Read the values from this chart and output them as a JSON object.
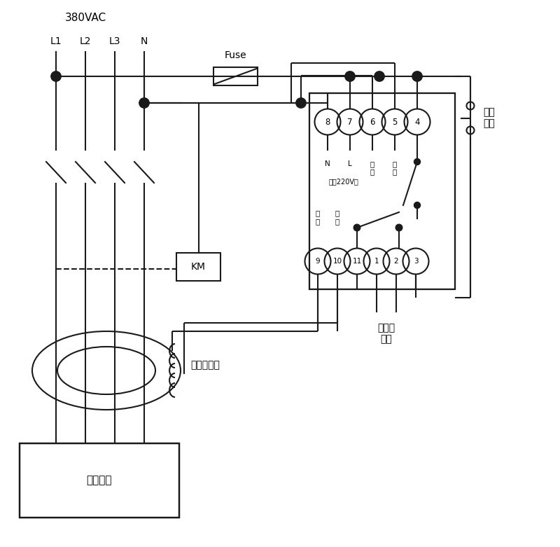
{
  "bg": "#ffffff",
  "lc": "#1a1a1a",
  "voltage_label": "380VAC",
  "phase_labels": [
    "L1",
    "L2",
    "L3",
    "N"
  ],
  "fuse_label": "Fuse",
  "km_label": "KM",
  "transformer_label": "零序互感器",
  "user_label": "用户设备",
  "top_terminals": [
    "8",
    "7",
    "6",
    "5",
    "4"
  ],
  "top_sub_labels": [
    "N",
    "L",
    "试验",
    "试验",
    ""
  ],
  "bot_terminals": [
    "9",
    "10",
    "11",
    "1",
    "2",
    "3"
  ],
  "bot_sub_labels": [
    "信号",
    "信号",
    "",
    "",
    "",
    ""
  ],
  "power_label": "电源220V～",
  "alarm_label": "接声光\n报警",
  "lock_label": "自锁\n开关"
}
